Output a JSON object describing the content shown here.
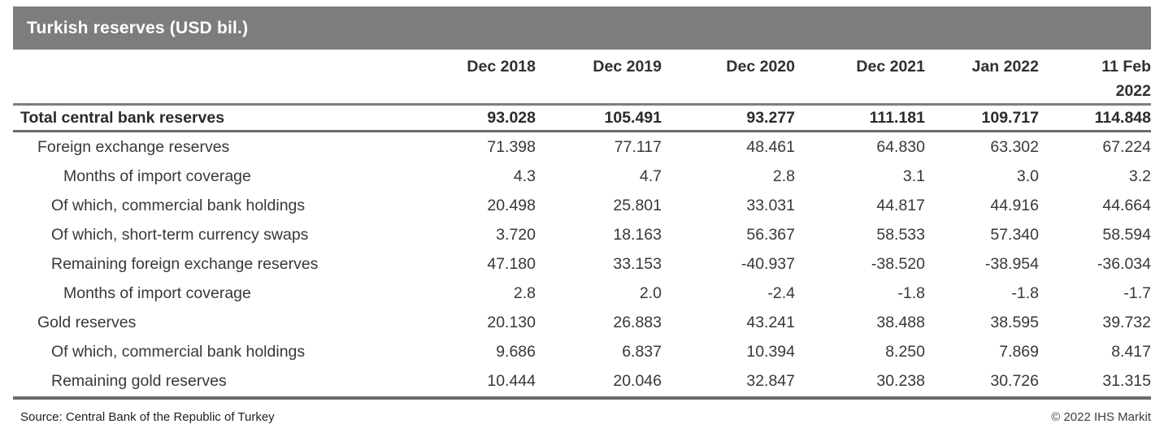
{
  "title": "Turkish reserves (USD bil.)",
  "source": "Source: Central Bank of the Republic of Turkey",
  "copyright": "© 2022 IHS Markit",
  "colors": {
    "title_bar_bg": "#7d7d7d",
    "title_text": "#ffffff",
    "rule_gray": "#6b6b6b",
    "header_rule_gray": "#7e7e7e",
    "body_text": "#383838"
  },
  "chart_data": {
    "type": "table",
    "title": "Turkish reserves (USD bil.)",
    "columns": [
      "Dec 2018",
      "Dec 2019",
      "Dec 2020",
      "Dec 2021",
      "Jan 2022",
      "11 Feb\n2022"
    ],
    "rows": [
      {
        "label": "Total central bank reserves",
        "indent": 0,
        "bold": true,
        "values": [
          "93.028",
          "105.491",
          "93.277",
          "111.181",
          "109.717",
          "114.848"
        ]
      },
      {
        "label": "Foreign exchange reserves",
        "indent": 1,
        "bold": false,
        "values": [
          "71.398",
          "77.117",
          "48.461",
          "64.830",
          "63.302",
          "67.224"
        ]
      },
      {
        "label": "Months of import coverage",
        "indent": 3,
        "bold": false,
        "values": [
          "4.3",
          "4.7",
          "2.8",
          "3.1",
          "3.0",
          "3.2"
        ]
      },
      {
        "label": "Of which, commercial bank holdings",
        "indent": 2,
        "bold": false,
        "values": [
          "20.498",
          "25.801",
          "33.031",
          "44.817",
          "44.916",
          "44.664"
        ]
      },
      {
        "label": "Of which, short-term currency swaps",
        "indent": 2,
        "bold": false,
        "values": [
          "3.720",
          "18.163",
          "56.367",
          "58.533",
          "57.340",
          "58.594"
        ]
      },
      {
        "label": "Remaining foreign exchange reserves",
        "indent": 2,
        "bold": false,
        "values": [
          "47.180",
          "33.153",
          "-40.937",
          "-38.520",
          "-38.954",
          "-36.034"
        ]
      },
      {
        "label": "Months of import coverage",
        "indent": 3,
        "bold": false,
        "values": [
          "2.8",
          "2.0",
          "-2.4",
          "-1.8",
          "-1.8",
          "-1.7"
        ]
      },
      {
        "label": "Gold reserves",
        "indent": 1,
        "bold": false,
        "values": [
          "20.130",
          "26.883",
          "43.241",
          "38.488",
          "38.595",
          "39.732"
        ]
      },
      {
        "label": "Of which, commercial bank holdings",
        "indent": 2,
        "bold": false,
        "values": [
          "9.686",
          "6.837",
          "10.394",
          "8.250",
          "7.869",
          "8.417"
        ]
      },
      {
        "label": "Remaining gold reserves",
        "indent": 2,
        "bold": false,
        "values": [
          "10.444",
          "20.046",
          "32.847",
          "30.238",
          "30.726",
          "31.315"
        ]
      }
    ]
  }
}
